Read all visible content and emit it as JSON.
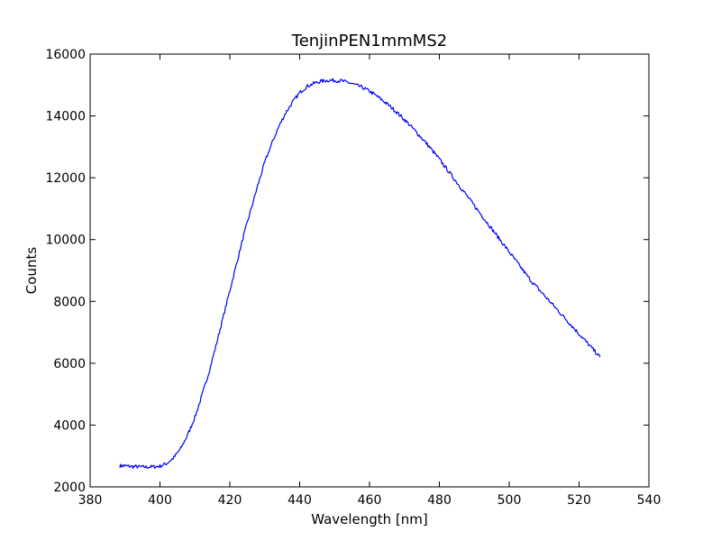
{
  "chart_data": {
    "type": "line",
    "title": "TenjinPEN1mmMS2",
    "xlabel": "Wavelength [nm]",
    "ylabel": "Counts",
    "xlim": [
      380,
      540
    ],
    "ylim": [
      2000,
      16000
    ],
    "xticks": [
      380,
      400,
      420,
      440,
      460,
      480,
      500,
      520,
      540
    ],
    "yticks": [
      2000,
      4000,
      6000,
      8000,
      10000,
      12000,
      14000,
      16000
    ],
    "grid": false,
    "legend": "none",
    "series": [
      {
        "color": "#0000ff",
        "points": [
          [
            388.5,
            2680
          ],
          [
            390,
            2680
          ],
          [
            392,
            2660
          ],
          [
            394,
            2650
          ],
          [
            396,
            2640
          ],
          [
            398,
            2650
          ],
          [
            400,
            2670
          ],
          [
            402,
            2760
          ],
          [
            404,
            2950
          ],
          [
            406,
            3250
          ],
          [
            408,
            3700
          ],
          [
            410,
            4250
          ],
          [
            412,
            4950
          ],
          [
            414,
            5700
          ],
          [
            416,
            6550
          ],
          [
            418,
            7450
          ],
          [
            420,
            8350
          ],
          [
            422,
            9250
          ],
          [
            424,
            10150
          ],
          [
            426,
            10950
          ],
          [
            428,
            11750
          ],
          [
            430,
            12500
          ],
          [
            432,
            13100
          ],
          [
            434,
            13650
          ],
          [
            436,
            14100
          ],
          [
            438,
            14450
          ],
          [
            440,
            14750
          ],
          [
            442,
            14950
          ],
          [
            444,
            15050
          ],
          [
            446,
            15120
          ],
          [
            448,
            15150
          ],
          [
            450,
            15150
          ],
          [
            452,
            15130
          ],
          [
            454,
            15080
          ],
          [
            456,
            15000
          ],
          [
            458,
            14920
          ],
          [
            460,
            14800
          ],
          [
            462,
            14650
          ],
          [
            464,
            14480
          ],
          [
            466,
            14300
          ],
          [
            468,
            14100
          ],
          [
            470,
            13880
          ],
          [
            472,
            13650
          ],
          [
            474,
            13400
          ],
          [
            476,
            13150
          ],
          [
            478,
            12880
          ],
          [
            480,
            12600
          ],
          [
            482,
            12300
          ],
          [
            484,
            12000
          ],
          [
            486,
            11700
          ],
          [
            488,
            11400
          ],
          [
            490,
            11100
          ],
          [
            492,
            10800
          ],
          [
            494,
            10500
          ],
          [
            496,
            10200
          ],
          [
            498,
            9900
          ],
          [
            500,
            9600
          ],
          [
            502,
            9300
          ],
          [
            504,
            9000
          ],
          [
            506,
            8700
          ],
          [
            508,
            8450
          ],
          [
            510,
            8200
          ],
          [
            512,
            7950
          ],
          [
            514,
            7700
          ],
          [
            516,
            7450
          ],
          [
            518,
            7200
          ],
          [
            520,
            6950
          ],
          [
            522,
            6700
          ],
          [
            524,
            6450
          ],
          [
            526,
            6200
          ]
        ]
      }
    ]
  }
}
